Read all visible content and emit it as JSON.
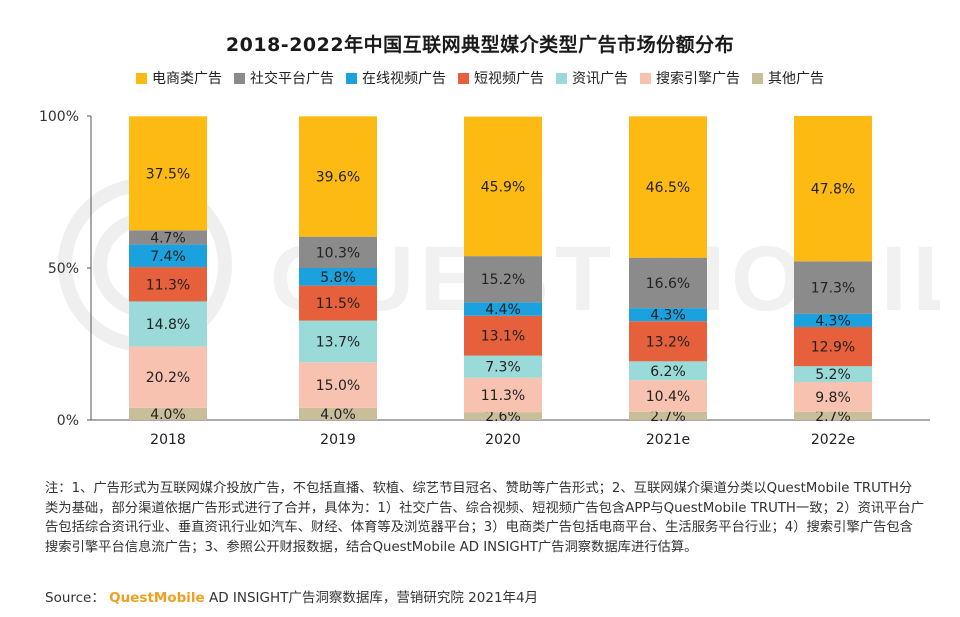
{
  "chart_data": {
    "type": "bar",
    "stacked": true,
    "title": "2018-2022年中国互联网典型媒介类型广告市场份额分布",
    "categories": [
      "2018",
      "2019",
      "2020",
      "2021e",
      "2022e"
    ],
    "ylim": [
      0,
      100
    ],
    "yticks": [
      "0%",
      "50%",
      "100%"
    ],
    "series": [
      {
        "name": "电商类广告",
        "color": "#FDBA12",
        "values": [
          37.5,
          39.6,
          45.9,
          46.5,
          47.8
        ]
      },
      {
        "name": "社交平台广告",
        "color": "#8B8B8B",
        "values": [
          4.7,
          10.3,
          15.2,
          16.6,
          17.3
        ]
      },
      {
        "name": "在线视频广告",
        "color": "#1BA1DE",
        "values": [
          7.4,
          5.8,
          4.4,
          4.3,
          4.3
        ]
      },
      {
        "name": "短视频广告",
        "color": "#E6603C",
        "values": [
          11.3,
          11.5,
          13.1,
          13.2,
          12.9
        ]
      },
      {
        "name": "资讯广告",
        "color": "#9ADBD9",
        "values": [
          14.8,
          13.7,
          7.3,
          6.2,
          5.2
        ]
      },
      {
        "name": "搜索引擎广告",
        "color": "#F8C2B1",
        "values": [
          20.2,
          15.0,
          11.3,
          10.4,
          9.8
        ]
      },
      {
        "name": "其他广告",
        "color": "#C9BE9A",
        "values": [
          4.0,
          4.0,
          2.6,
          2.7,
          2.7
        ]
      }
    ]
  },
  "notes": "注：1、广告形式为互联网媒介投放广告，不包括直播、软植、综艺节目冠名、赞助等广告形式；2、互联网媒介渠道分类以QuestMobile TRUTH分类为基础，部分渠道依据广告形式进行了合并，具体为：1）社交广告、综合视频、短视频广告包含APP与QuestMobile TRUTH一致；2）资讯平台广告包括综合资讯行业、垂直资讯行业如汽车、财经、体育等及浏览器平台；3）电商类广告包括电商平台、生活服务平台行业；4）搜索引擎广告包含搜索引擎平台信息流广告；3、参照公开财报数据，结合QuestMobile AD INSIGHT广告洞察数据库进行估算。",
  "source": {
    "label": "Source：",
    "brand": "QuestMobile",
    "rest": " AD INSIGHT广告洞察数据库，营销研究院 2021年4月"
  },
  "watermark": {
    "letters": "QUEST MOBILE"
  }
}
